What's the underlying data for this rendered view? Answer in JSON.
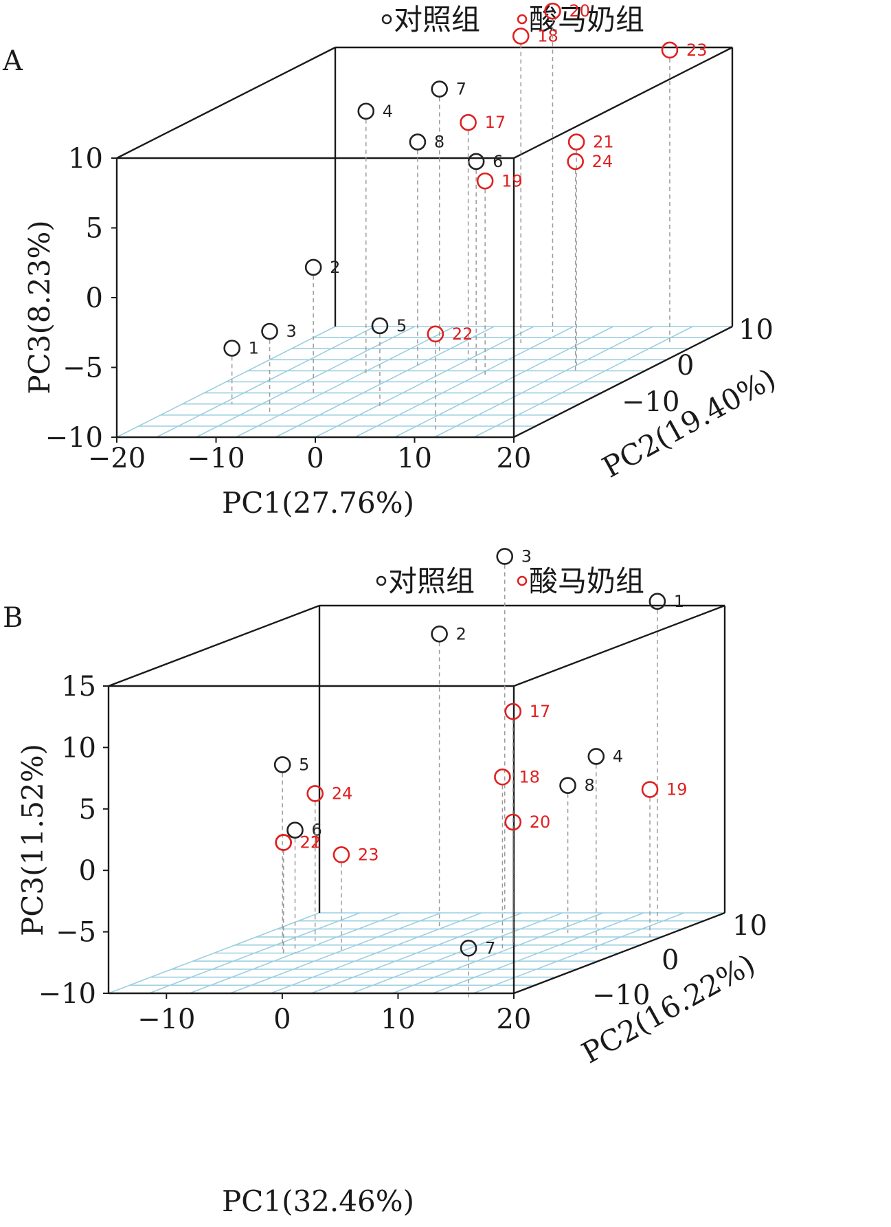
{
  "chart_data": [
    {
      "type": "scatter",
      "panel_label": "A",
      "xlabel": "PC1(27.76%)",
      "ylabel": "PC2(19.40%)",
      "zlabel": "PC3(8.23%)",
      "xlim": [
        -20,
        20
      ],
      "ylim": [
        -10,
        10
      ],
      "zlim": [
        -10,
        10
      ],
      "xticks": [
        "−20",
        "−10",
        "0",
        "10",
        "20"
      ],
      "yticks": [
        "−10",
        "0",
        "10"
      ],
      "zticks": [
        "10",
        "5",
        "0",
        "−5",
        "−10"
      ],
      "legend": [
        {
          "name": "对照组",
          "color": "#222222"
        },
        {
          "name": "酸马奶组",
          "color": "#e02020"
        }
      ],
      "series": [
        {
          "name": "对照组",
          "color": "#222222",
          "points": [
            {
              "label": "1",
              "x": -15,
              "y": -4,
              "z": -6
            },
            {
              "label": "2",
              "x": -9,
              "y": -2,
              "z": -1
            },
            {
              "label": "3",
              "x": -9,
              "y": -6,
              "z": -4
            },
            {
              "label": "4",
              "x": -7,
              "y": 1,
              "z": 9
            },
            {
              "label": "5",
              "x": 1,
              "y": -5,
              "z": -4
            },
            {
              "label": "6",
              "x": 3,
              "y": 2,
              "z": 5
            },
            {
              "label": "7",
              "x": -4,
              "y": 5,
              "z": 9
            },
            {
              "label": "8",
              "x": -4,
              "y": 3,
              "z": 6
            }
          ]
        },
        {
          "name": "酸马奶组",
          "color": "#e02020",
          "points": [
            {
              "label": "17",
              "x": 0,
              "y": 4,
              "z": 7
            },
            {
              "label": "18",
              "x": 2,
              "y": 7,
              "z": 12
            },
            {
              "label": "19",
              "x": 5,
              "y": 1,
              "z": 4
            },
            {
              "label": "20",
              "x": 3,
              "y": 9,
              "z": 13
            },
            {
              "label": "21",
              "x": 12,
              "y": 3,
              "z": 6
            },
            {
              "label": "22",
              "x": 11,
              "y": -9,
              "z": -3
            },
            {
              "label": "23",
              "x": 17,
              "y": 7,
              "z": 11
            },
            {
              "label": "24",
              "x": 13,
              "y": 2,
              "z": 5
            }
          ]
        }
      ]
    },
    {
      "type": "scatter",
      "panel_label": "B",
      "xlabel": "PC1(32.46%)",
      "ylabel": "PC2(16.22%)",
      "zlabel": "PC3(11.52%)",
      "xlim": [
        -15,
        20
      ],
      "ylim": [
        -10,
        10
      ],
      "zlim": [
        -10,
        15
      ],
      "xticks": [
        "−10",
        "0",
        "10",
        "20"
      ],
      "yticks": [
        "−10",
        "0",
        "10"
      ],
      "zticks": [
        "15",
        "10",
        "5",
        "0",
        "−5",
        "−10"
      ],
      "legend": [
        {
          "name": "对照组",
          "color": "#222222"
        },
        {
          "name": "酸马奶组",
          "color": "#e02020"
        }
      ],
      "series": [
        {
          "name": "对照组",
          "color": "#222222",
          "points": [
            {
              "label": "1",
              "x": 16,
              "y": 8,
              "z": 16
            },
            {
              "label": "2",
              "x": -1,
              "y": 6,
              "z": 14
            },
            {
              "label": "3",
              "x": 1,
              "y": 10,
              "z": 19
            },
            {
              "label": "4",
              "x": 18,
              "y": 0,
              "z": 6
            },
            {
              "label": "5",
              "x": -10,
              "y": 1,
              "z": 5
            },
            {
              "label": "6",
              "x": -8,
              "y": 0,
              "z": 0
            },
            {
              "label": "7",
              "x": 17,
              "y": -11,
              "z": -6
            },
            {
              "label": "8",
              "x": 11,
              "y": 5,
              "z": 2
            }
          ]
        },
        {
          "name": "酸马奶组",
          "color": "#e02020",
          "points": [
            {
              "label": "17",
              "x": 9,
              "y": 2,
              "z": 9
            },
            {
              "label": "18",
              "x": 9,
              "y": 1,
              "z": 4
            },
            {
              "label": "19",
              "x": 19,
              "y": 4,
              "z": 2
            },
            {
              "label": "20",
              "x": 9,
              "y": 2,
              "z": 0
            },
            {
              "label": "21",
              "x": -9,
              "y": 0,
              "z": -1
            },
            {
              "label": "22",
              "x": -9,
              "y": 0,
              "z": -1
            },
            {
              "label": "23",
              "x": -4,
              "y": 0,
              "z": -2
            },
            {
              "label": "24",
              "x": -9,
              "y": 3,
              "z": 2
            }
          ]
        }
      ]
    }
  ]
}
